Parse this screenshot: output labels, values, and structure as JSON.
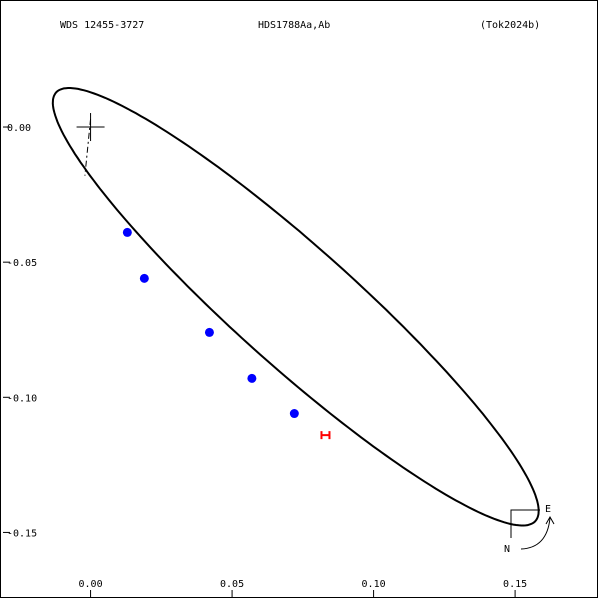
{
  "header": {
    "left": "WDS 12455-3727",
    "center": "HDS1788Aa,Ab",
    "right": "(Tok2024b)"
  },
  "compass": {
    "east_label": "E",
    "north_label": "N"
  },
  "colors": {
    "observation": "#0000ff",
    "prediction": "#ff0000",
    "orbit": "#000000"
  },
  "chart_data": {
    "type": "scatter",
    "xlim": [
      -0.032,
      0.18
    ],
    "ylim": [
      -0.175,
      0.047
    ],
    "xticks": [
      {
        "value": 0.0,
        "label": "0.00"
      },
      {
        "value": 0.05,
        "label": "0.05"
      },
      {
        "value": 0.1,
        "label": "0.10"
      },
      {
        "value": 0.15,
        "label": "0.15"
      }
    ],
    "yticks": [
      {
        "value": 0.0,
        "label": "0.00"
      },
      {
        "value": -0.05,
        "label": "-0.05"
      },
      {
        "value": -0.1,
        "label": "-0.10"
      },
      {
        "value": -0.15,
        "label": "-0.15"
      }
    ],
    "orbit_ellipse": {
      "center": [
        0.0725,
        -0.0665
      ],
      "semi_major": 0.116,
      "semi_minor": 0.0215,
      "angle_deg": -43.2
    },
    "observations": [
      {
        "x": 0.013,
        "y": -0.039
      },
      {
        "x": 0.019,
        "y": -0.056
      },
      {
        "x": 0.042,
        "y": -0.076
      },
      {
        "x": 0.057,
        "y": -0.093
      },
      {
        "x": 0.072,
        "y": -0.106
      }
    ],
    "predicted": {
      "x": 0.083,
      "y": -0.114
    },
    "primary": {
      "x": 0.0,
      "y": 0.0
    },
    "node_line": [
      [
        0.0,
        0.003
      ],
      [
        -0.002,
        -0.018
      ]
    ]
  }
}
